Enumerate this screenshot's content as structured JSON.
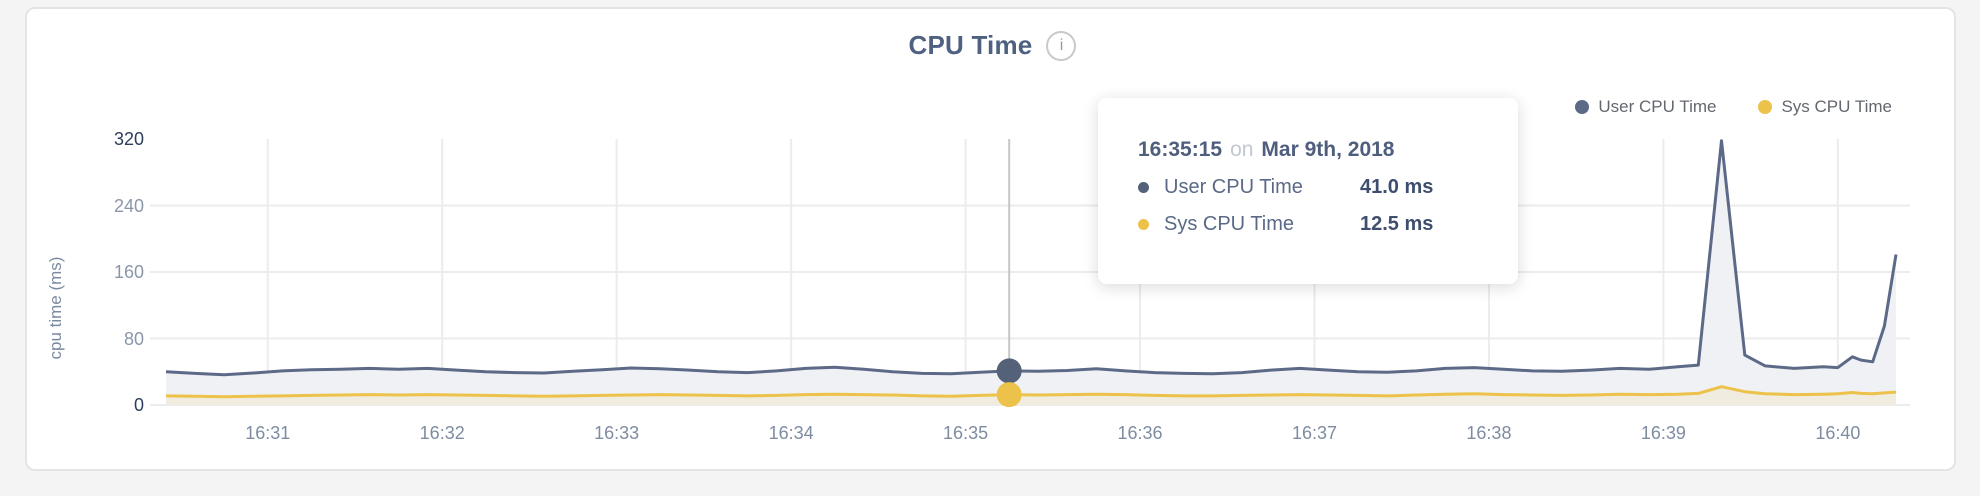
{
  "page": {
    "background": "#f4f4f4"
  },
  "header": {
    "title": "CPU Time",
    "info_icon": "i"
  },
  "legend": {
    "items": [
      {
        "label": "User CPU Time",
        "color": "#5d6a87"
      },
      {
        "label": "Sys CPU Time",
        "color": "#edc24a"
      }
    ]
  },
  "tooltip": {
    "time": "16:35:15",
    "preposition": "on",
    "date": "Mar 9th, 2018",
    "rows": [
      {
        "label": "User CPU Time",
        "value": "41.0 ms",
        "color": "#556179"
      },
      {
        "label": "Sys CPU Time",
        "value": "12.5 ms",
        "color": "#edc24a"
      }
    ]
  },
  "colors": {
    "user_line": "#5d6a87",
    "user_fill": "#eff1f4",
    "sys_line": "#edc24a",
    "sys_fill": "#f0ece0",
    "grid": "#ececec",
    "crosshair": "#c7c7c7",
    "tick_emphasis": "#2e3d5b",
    "tick_normal": "#8a97aa",
    "user_dot": "#556179",
    "sys_dot": "#edc24a"
  },
  "chart_data": {
    "type": "area",
    "title": "CPU Time",
    "xlabel": "",
    "ylabel": "cpu time (ms)",
    "ylim": [
      0,
      320
    ],
    "grid": true,
    "legend_position": "top-right",
    "x_start": "16:30:25",
    "x_end": "16:40:20",
    "x_ticks": [
      "16:31",
      "16:32",
      "16:33",
      "16:34",
      "16:35",
      "16:36",
      "16:37",
      "16:38",
      "16:39",
      "16:40"
    ],
    "y_ticks": [
      {
        "v": 0,
        "label": "0",
        "emphasis": true
      },
      {
        "v": 80,
        "label": "80",
        "emphasis": false
      },
      {
        "v": 160,
        "label": "160",
        "emphasis": false
      },
      {
        "v": 240,
        "label": "240",
        "emphasis": false
      },
      {
        "v": 320,
        "label": "320",
        "emphasis": true
      }
    ],
    "x": [
      "16:30:25",
      "16:30:35",
      "16:30:45",
      "16:30:55",
      "16:31:05",
      "16:31:15",
      "16:31:25",
      "16:31:35",
      "16:31:45",
      "16:31:55",
      "16:32:05",
      "16:32:15",
      "16:32:25",
      "16:32:35",
      "16:32:45",
      "16:32:55",
      "16:33:05",
      "16:33:15",
      "16:33:25",
      "16:33:35",
      "16:33:45",
      "16:33:55",
      "16:34:05",
      "16:34:15",
      "16:34:25",
      "16:34:35",
      "16:34:45",
      "16:34:55",
      "16:35:05",
      "16:35:15",
      "16:35:25",
      "16:35:35",
      "16:35:45",
      "16:35:55",
      "16:36:05",
      "16:36:15",
      "16:36:25",
      "16:36:35",
      "16:36:45",
      "16:36:55",
      "16:37:05",
      "16:37:15",
      "16:37:25",
      "16:37:35",
      "16:37:45",
      "16:37:55",
      "16:38:05",
      "16:38:15",
      "16:38:25",
      "16:38:35",
      "16:38:45",
      "16:38:55",
      "16:39:05",
      "16:39:12",
      "16:39:20",
      "16:39:28",
      "16:39:35",
      "16:39:45",
      "16:39:55",
      "16:40:00",
      "16:40:05",
      "16:40:08",
      "16:40:12",
      "16:40:16",
      "16:40:20"
    ],
    "series": [
      {
        "name": "User CPU Time",
        "unit": "ms",
        "values": [
          40,
          38,
          36.5,
          38.5,
          41,
          42.5,
          43,
          44,
          43,
          44,
          42,
          40,
          39,
          38.5,
          40.5,
          42.5,
          44.5,
          43.5,
          42,
          40,
          39,
          41,
          44,
          45.5,
          43,
          40,
          38,
          37.5,
          39.5,
          41,
          40.5,
          41.5,
          43.5,
          41,
          39,
          38,
          37.5,
          39,
          42,
          44,
          42,
          40,
          39.5,
          41,
          44,
          45,
          43,
          41,
          40.5,
          42,
          44,
          43,
          46,
          48,
          318,
          60,
          47,
          44,
          46,
          45,
          58,
          54,
          52,
          95,
          181
        ]
      },
      {
        "name": "Sys CPU Time",
        "unit": "ms",
        "values": [
          11,
          10.5,
          10,
          10.5,
          11,
          11.5,
          12,
          12.5,
          12,
          12.5,
          12,
          11.5,
          11,
          10.5,
          11,
          11.5,
          12,
          12.5,
          12,
          11.5,
          11,
          11.5,
          12.5,
          13,
          12.5,
          12,
          11,
          10.5,
          11.5,
          12.5,
          12,
          12.5,
          13,
          12.5,
          11.5,
          11,
          11,
          11.5,
          12,
          12.5,
          12,
          11.5,
          11,
          12,
          13,
          13.5,
          12.5,
          12,
          11.5,
          12,
          13,
          12.5,
          13,
          14,
          22,
          16,
          13.5,
          12.5,
          13,
          13.5,
          15,
          14,
          13.5,
          14.5,
          15.5
        ]
      }
    ],
    "highlight": {
      "time": "16:35:15",
      "user_ms": 41.0,
      "sys_ms": 12.5
    }
  }
}
